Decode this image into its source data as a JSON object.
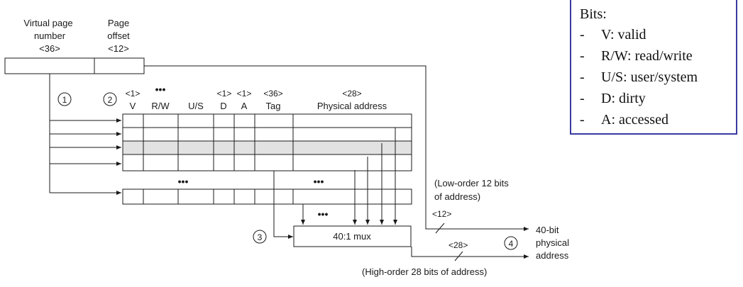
{
  "labels": {
    "vpn": [
      "Virtual page",
      "number",
      "<36>"
    ],
    "offset": [
      "Page",
      "offset",
      "<12>"
    ],
    "steps": [
      "1",
      "2",
      "3",
      "4"
    ],
    "cols_width": [
      "<1>",
      "<1>",
      "<1>",
      "<36>",
      "<28>"
    ],
    "cols": [
      "V",
      "R/W",
      "U/S",
      "D",
      "A",
      "Tag",
      "Physical address"
    ],
    "ellipsis": "•••",
    "mux": "40:1 mux",
    "low_order": [
      "(Low-order 12 bits",
      "of address)"
    ],
    "w12": "<12>",
    "w28": "<28>",
    "phys": [
      "40-bit",
      "physical",
      "address"
    ],
    "high_order": "(High-order 28 bits of address)"
  },
  "bits_box": {
    "title": "Bits:",
    "items": [
      "V: valid",
      "R/W: read/write",
      "U/S: user/system",
      "D: dirty",
      "A: accessed"
    ],
    "dash": "-",
    "border_color": "#3a3aa0"
  },
  "colors": {
    "highlight_row": "#e2e2e2",
    "line": "#1a1a1a"
  }
}
